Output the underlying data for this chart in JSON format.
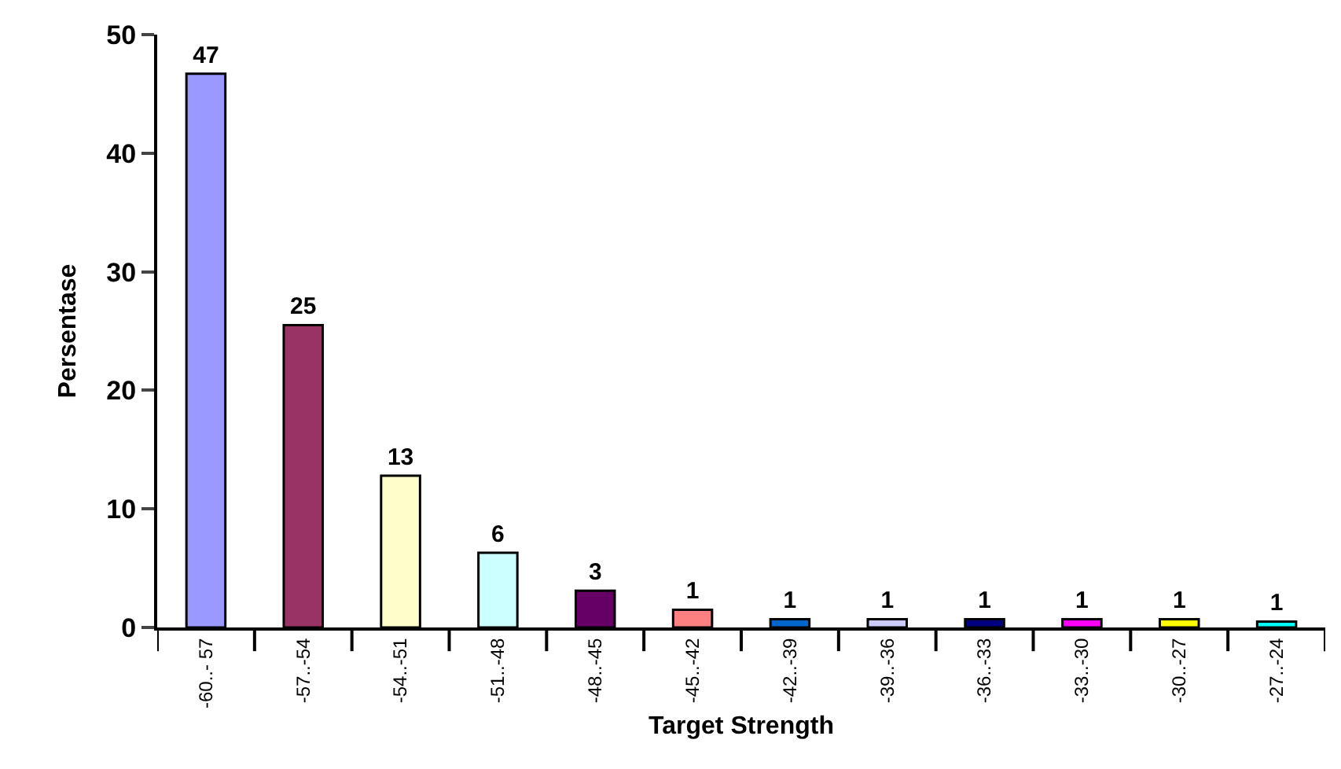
{
  "chart_data": {
    "type": "bar",
    "xlabel": "Target Strength",
    "ylabel": "Persentase",
    "categories": [
      "-60..- 57",
      "-57..-54",
      "-54..-51",
      "-51..-48",
      "-48..-45",
      "-45..-42",
      "-42..-39",
      "-39..-36",
      "-36..-33",
      "-33..-30",
      "-30..-27",
      "-27..-24"
    ],
    "values": [
      46.7,
      25.5,
      12.8,
      6.3,
      3.1,
      1.5,
      0.7,
      0.7,
      0.7,
      0.7,
      0.7,
      0.5
    ],
    "value_labels": [
      "47",
      "25",
      "13",
      "6",
      "3",
      "1",
      "1",
      "1",
      "1",
      "1",
      "1",
      "1"
    ],
    "colors": [
      "#9999ff",
      "#993366",
      "#ffffcc",
      "#ccffff",
      "#660066",
      "#ff8080",
      "#0066cc",
      "#ccccff",
      "#000080",
      "#ff00ff",
      "#ffff00",
      "#00ffff"
    ],
    "ylim": [
      0,
      50
    ],
    "yticks": [
      0,
      10,
      20,
      30,
      40,
      50
    ]
  }
}
